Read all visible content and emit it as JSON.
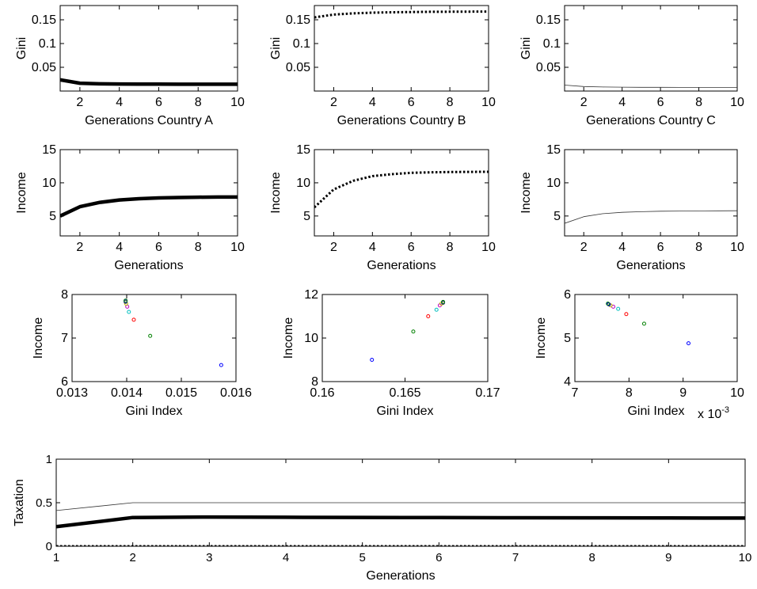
{
  "chart_data": [
    {
      "id": "gini_A",
      "type": "line",
      "xlabel": "Generations Country A",
      "ylabel": "Gini",
      "xlim": [
        1,
        10
      ],
      "ylim": [
        0,
        0.18
      ],
      "xticks": [
        2,
        4,
        6,
        8,
        10
      ],
      "yticks": [
        0.05,
        0.1,
        0.15
      ],
      "series": [
        {
          "style": "thick",
          "x": [
            1,
            2,
            3,
            4,
            5,
            6,
            7,
            8,
            9,
            10
          ],
          "values": [
            0.0235,
            0.0165,
            0.0152,
            0.0148,
            0.0146,
            0.0145,
            0.0144,
            0.0144,
            0.0143,
            0.0143
          ]
        }
      ]
    },
    {
      "id": "gini_B",
      "type": "line",
      "xlabel": "Generations Country B",
      "ylabel": "Gini",
      "xlim": [
        1,
        10
      ],
      "ylim": [
        0,
        0.18
      ],
      "xticks": [
        2,
        4,
        6,
        8,
        10
      ],
      "yticks": [
        0.05,
        0.1,
        0.15
      ],
      "series": [
        {
          "style": "dotted",
          "x": [
            1,
            2,
            3,
            4,
            5,
            6,
            7,
            8,
            9,
            10
          ],
          "values": [
            0.155,
            0.161,
            0.1635,
            0.165,
            0.1658,
            0.1664,
            0.1668,
            0.167,
            0.1672,
            0.1673
          ]
        }
      ]
    },
    {
      "id": "gini_C",
      "type": "line",
      "xlabel": "Generations Country C",
      "ylabel": "Gini",
      "xlim": [
        1,
        10
      ],
      "ylim": [
        0,
        0.18
      ],
      "xticks": [
        2,
        4,
        6,
        8,
        10
      ],
      "yticks": [
        0.05,
        0.1,
        0.15
      ],
      "series": [
        {
          "style": "thin",
          "x": [
            1,
            2,
            3,
            4,
            5,
            6,
            7,
            8,
            9,
            10
          ],
          "values": [
            0.0125,
            0.0095,
            0.0085,
            0.0081,
            0.0079,
            0.0078,
            0.0077,
            0.0077,
            0.0076,
            0.0076
          ]
        }
      ]
    },
    {
      "id": "income_A",
      "type": "line",
      "xlabel": "Generations",
      "ylabel": "Income",
      "xlim": [
        1,
        10
      ],
      "ylim": [
        2,
        15
      ],
      "xticks": [
        2,
        4,
        6,
        8,
        10
      ],
      "yticks": [
        5,
        10,
        15
      ],
      "series": [
        {
          "style": "thick",
          "x": [
            1,
            2,
            3,
            4,
            5,
            6,
            7,
            8,
            9,
            10
          ],
          "values": [
            5.0,
            6.4,
            7.05,
            7.42,
            7.6,
            7.72,
            7.79,
            7.83,
            7.85,
            7.86
          ]
        }
      ]
    },
    {
      "id": "income_B",
      "type": "line",
      "xlabel": "Generations",
      "ylabel": "Income",
      "xlim": [
        1,
        10
      ],
      "ylim": [
        2,
        15
      ],
      "xticks": [
        2,
        4,
        6,
        8,
        10
      ],
      "yticks": [
        5,
        10,
        15
      ],
      "series": [
        {
          "style": "dotted",
          "x": [
            1,
            2,
            3,
            4,
            5,
            6,
            7,
            8,
            9,
            10
          ],
          "values": [
            6.3,
            9.0,
            10.3,
            11.0,
            11.3,
            11.5,
            11.58,
            11.62,
            11.65,
            11.66
          ]
        }
      ]
    },
    {
      "id": "income_C",
      "type": "line",
      "xlabel": "Generations",
      "ylabel": "Income",
      "xlim": [
        1,
        10
      ],
      "ylim": [
        2,
        15
      ],
      "xticks": [
        2,
        4,
        6,
        8,
        10
      ],
      "yticks": [
        5,
        10,
        15
      ],
      "series": [
        {
          "style": "thin",
          "x": [
            1,
            2,
            3,
            4,
            5,
            6,
            7,
            8,
            9,
            10
          ],
          "values": [
            3.9,
            4.9,
            5.35,
            5.55,
            5.65,
            5.72,
            5.75,
            5.77,
            5.78,
            5.79
          ]
        }
      ]
    },
    {
      "id": "scatter_A",
      "type": "scatter",
      "xlabel": "Gini Index",
      "ylabel": "Income",
      "xlim": [
        0.013,
        0.016
      ],
      "ylim": [
        6,
        8
      ],
      "xticks": [
        0.013,
        0.014,
        0.015,
        0.016
      ],
      "yticks": [
        6,
        7,
        8
      ],
      "points": [
        {
          "x": 0.01573,
          "y": 6.38,
          "color": "#0000ff"
        },
        {
          "x": 0.01443,
          "y": 7.05,
          "color": "#008000"
        },
        {
          "x": 0.01413,
          "y": 7.42,
          "color": "#ff0000"
        },
        {
          "x": 0.01404,
          "y": 7.6,
          "color": "#00bfbf"
        },
        {
          "x": 0.01401,
          "y": 7.72,
          "color": "#bf00bf"
        },
        {
          "x": 0.01399,
          "y": 7.79,
          "color": "#bfbf00"
        },
        {
          "x": 0.01398,
          "y": 7.83,
          "color": "#404040"
        },
        {
          "x": 0.01398,
          "y": 7.85,
          "color": "#0000ff"
        },
        {
          "x": 0.01398,
          "y": 7.86,
          "color": "#008000"
        }
      ]
    },
    {
      "id": "scatter_B",
      "type": "scatter",
      "xlabel": "Gini Index",
      "ylabel": "Income",
      "xlim": [
        0.16,
        0.17
      ],
      "ylim": [
        8,
        12
      ],
      "xticks": [
        0.16,
        0.165,
        0.17
      ],
      "yticks": [
        8,
        10,
        12
      ],
      "points": [
        {
          "x": 0.163,
          "y": 9.0,
          "color": "#0000ff"
        },
        {
          "x": 0.1655,
          "y": 10.3,
          "color": "#008000"
        },
        {
          "x": 0.1664,
          "y": 11.0,
          "color": "#ff0000"
        },
        {
          "x": 0.1669,
          "y": 11.3,
          "color": "#00bfbf"
        },
        {
          "x": 0.1671,
          "y": 11.5,
          "color": "#bf00bf"
        },
        {
          "x": 0.1672,
          "y": 11.58,
          "color": "#bfbf00"
        },
        {
          "x": 0.1673,
          "y": 11.62,
          "color": "#404040"
        },
        {
          "x": 0.1673,
          "y": 11.65,
          "color": "#0000ff"
        },
        {
          "x": 0.1673,
          "y": 11.66,
          "color": "#008000"
        }
      ]
    },
    {
      "id": "scatter_C",
      "type": "scatter",
      "xlabel": "Gini Index",
      "ylabel": "Income",
      "xscale_label": "x 10-3",
      "xlim": [
        7,
        10
      ],
      "ylim": [
        4,
        6
      ],
      "xticks": [
        7,
        8,
        9,
        10
      ],
      "yticks": [
        4,
        5,
        6
      ],
      "points": [
        {
          "x": 9.1,
          "y": 4.88,
          "color": "#0000ff"
        },
        {
          "x": 8.28,
          "y": 5.33,
          "color": "#008000"
        },
        {
          "x": 7.95,
          "y": 5.55,
          "color": "#ff0000"
        },
        {
          "x": 7.8,
          "y": 5.67,
          "color": "#00bfbf"
        },
        {
          "x": 7.71,
          "y": 5.72,
          "color": "#bf00bf"
        },
        {
          "x": 7.66,
          "y": 5.75,
          "color": "#bfbf00"
        },
        {
          "x": 7.63,
          "y": 5.77,
          "color": "#404040"
        },
        {
          "x": 7.62,
          "y": 5.78,
          "color": "#0000ff"
        },
        {
          "x": 7.61,
          "y": 5.79,
          "color": "#008000"
        }
      ]
    },
    {
      "id": "taxation",
      "type": "line",
      "xlabel": "Generations",
      "ylabel": "Taxation",
      "xlim": [
        1,
        10
      ],
      "ylim": [
        0,
        1
      ],
      "xticks": [
        1,
        2,
        3,
        4,
        5,
        6,
        7,
        8,
        9,
        10
      ],
      "yticks": [
        0,
        0.5,
        1
      ],
      "series": [
        {
          "style": "thin",
          "x": [
            1,
            2,
            3,
            4,
            5,
            6,
            7,
            8,
            9,
            10
          ],
          "values": [
            0.41,
            0.5,
            0.5,
            0.5,
            0.5,
            0.5,
            0.5,
            0.5,
            0.5,
            0.5
          ]
        },
        {
          "style": "thick",
          "x": [
            1,
            2,
            3,
            4,
            5,
            6,
            7,
            8,
            9,
            10
          ],
          "values": [
            0.225,
            0.33,
            0.335,
            0.333,
            0.331,
            0.329,
            0.327,
            0.326,
            0.325,
            0.324
          ]
        },
        {
          "style": "dotted",
          "x": [
            1,
            2,
            3,
            4,
            5,
            6,
            7,
            8,
            9,
            10
          ],
          "values": [
            0,
            0,
            0,
            0,
            0,
            0,
            0,
            0,
            0,
            0
          ]
        }
      ]
    }
  ]
}
